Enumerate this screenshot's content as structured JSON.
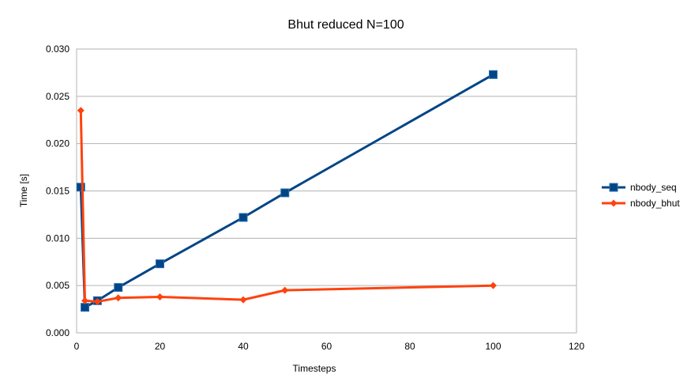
{
  "chart_data": {
    "type": "line",
    "title": "Bhut reduced N=100",
    "xlabel": "Timesteps",
    "ylabel": "Time [s]",
    "xlim": [
      0,
      120
    ],
    "ylim": [
      0,
      0.03
    ],
    "x_ticks": [
      "0",
      "20",
      "40",
      "60",
      "80",
      "100",
      "120"
    ],
    "y_ticks": [
      "0.000",
      "0.005",
      "0.010",
      "0.015",
      "0.020",
      "0.025",
      "0.030"
    ],
    "grid": true,
    "legend_position": "right",
    "series": [
      {
        "name": "nbody_seq",
        "color": "#004586",
        "marker": "square",
        "x": [
          1,
          2,
          5,
          10,
          20,
          40,
          50,
          100
        ],
        "y": [
          0.0154,
          0.0027,
          0.0034,
          0.0048,
          0.0073,
          0.0122,
          0.0148,
          0.0273
        ]
      },
      {
        "name": "nbody_bhut",
        "color": "#ff420e",
        "marker": "diamond",
        "x": [
          1,
          2,
          5,
          10,
          20,
          40,
          50,
          100
        ],
        "y": [
          0.0235,
          0.0034,
          0.0033,
          0.0037,
          0.0038,
          0.0035,
          0.0045,
          0.005
        ]
      }
    ]
  }
}
